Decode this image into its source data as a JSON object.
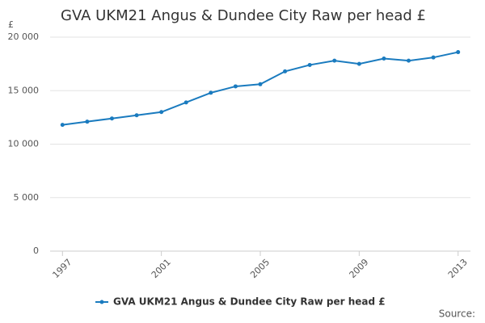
{
  "chart_data": {
    "type": "line",
    "title": "GVA UKM21 Angus & Dundee City Raw per head £",
    "y_label": "£",
    "source": "Source:",
    "x": [
      1997,
      1998,
      1999,
      2000,
      2001,
      2002,
      2003,
      2004,
      2005,
      2006,
      2007,
      2008,
      2009,
      2010,
      2011,
      2012,
      2013
    ],
    "series": [
      {
        "name": "GVA UKM21 Angus & Dundee City Raw per head £",
        "color": "#1a7bbf",
        "values": [
          11800,
          12100,
          12400,
          12700,
          13000,
          13900,
          14800,
          15400,
          15600,
          16800,
          17400,
          17800,
          17500,
          18000,
          17800,
          18100,
          18600
        ]
      }
    ],
    "xlim": [
      1996.5,
      2013.5
    ],
    "xticks": [
      1997,
      2001,
      2005,
      2009,
      2013
    ],
    "ylim": [
      0,
      20000
    ],
    "yticks": [
      0,
      {
        "value": 5000,
        "label": "5 000"
      },
      {
        "value": 10000,
        "label": "10 000"
      },
      {
        "value": 15000,
        "label": "15 000"
      },
      {
        "value": 20000,
        "label": "20 000"
      }
    ],
    "grid": true,
    "legend": "bottom"
  }
}
